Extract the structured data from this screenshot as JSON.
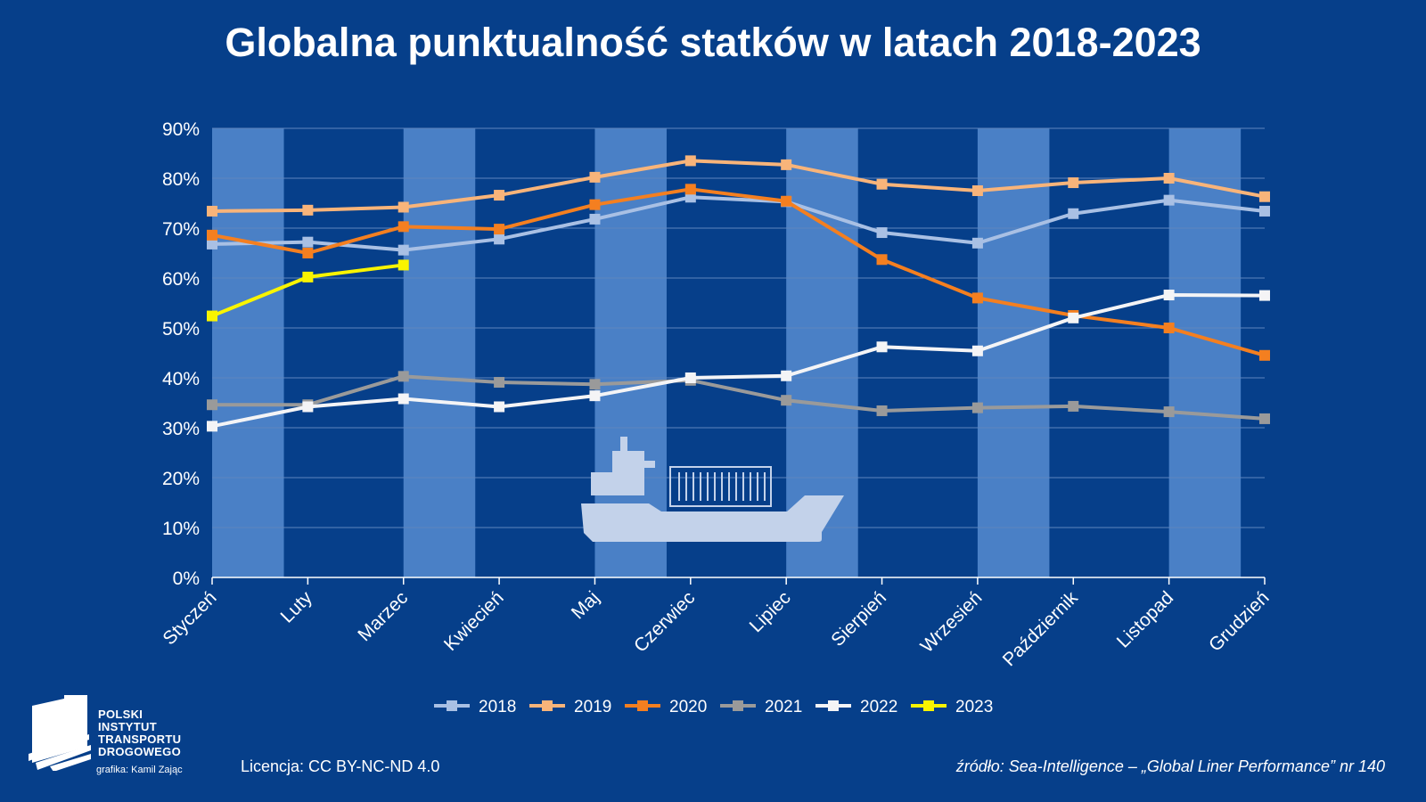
{
  "logo": {
    "lines": [
      "POLSKI",
      "INSTYTUT",
      "TRANSPORTU",
      "DROGOWEGO"
    ]
  },
  "footer": {
    "credit": "grafika: Kamil Zając",
    "license": "Licencja: CC BY-NC-ND 4.0",
    "source": "źródło: Sea-Intelligence – „Global Liner Performance” nr 140"
  },
  "colors": {
    "background": "#063f8a",
    "band": "#4a80c6",
    "grid": "#5f86bf"
  },
  "icons": [
    "container-ship-icon"
  ],
  "chart_data": {
    "type": "line",
    "title": "Globalna punktualność statków w latach 2018-2023",
    "xlabel": "",
    "ylabel": "",
    "ylim": [
      0,
      90
    ],
    "yticks": [
      "0%",
      "10%",
      "20%",
      "30%",
      "40%",
      "50%",
      "60%",
      "70%",
      "80%",
      "90%"
    ],
    "grid": true,
    "legend": "bottom",
    "categories": [
      "Styczeń",
      "Luty",
      "Marzec",
      "Kwiecień",
      "Maj",
      "Czerwiec",
      "Lipiec",
      "Sierpień",
      "Wrzesień",
      "Październik",
      "Listopad",
      "Grudzień"
    ],
    "series": [
      {
        "name": "2018",
        "color": "#a9c0e4",
        "values": [
          66.8,
          67.2,
          65.6,
          67.8,
          71.8,
          76.2,
          75.3,
          69.1,
          67.0,
          72.9,
          75.6,
          73.4
        ]
      },
      {
        "name": "2019",
        "color": "#f8b47a",
        "values": [
          73.4,
          73.6,
          74.2,
          76.6,
          80.2,
          83.5,
          82.7,
          78.8,
          77.5,
          79.1,
          80.0,
          76.3
        ]
      },
      {
        "name": "2020",
        "color": "#f47f20",
        "values": [
          68.6,
          65.0,
          70.3,
          69.8,
          74.7,
          77.8,
          75.4,
          63.7,
          56.0,
          52.5,
          50.0,
          44.5
        ]
      },
      {
        "name": "2021",
        "color": "#9a9a9a",
        "values": [
          34.6,
          34.6,
          40.3,
          39.1,
          38.7,
          39.5,
          35.5,
          33.4,
          34.0,
          34.3,
          33.2,
          31.8
        ]
      },
      {
        "name": "2022",
        "color": "#f4f4f6",
        "values": [
          30.3,
          34.2,
          35.8,
          34.2,
          36.4,
          40.0,
          40.4,
          46.2,
          45.4,
          52.0,
          56.6,
          56.5
        ]
      },
      {
        "name": "2023",
        "color": "#f9f400",
        "values": [
          52.4,
          60.2,
          62.6,
          null,
          null,
          null,
          null,
          null,
          null,
          null,
          null,
          null
        ]
      }
    ]
  }
}
